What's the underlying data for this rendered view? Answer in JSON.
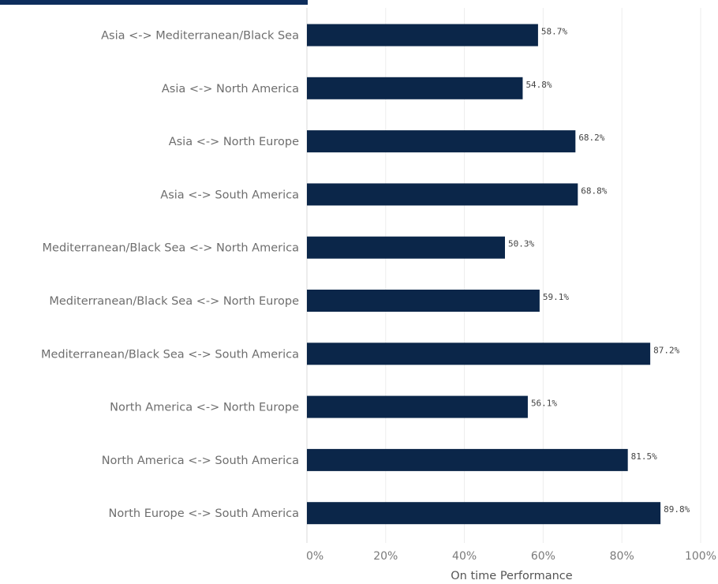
{
  "chart_data": {
    "type": "bar",
    "orientation": "horizontal",
    "categories": [
      "Asia <-> Mediterranean/Black Sea",
      "Asia <-> North America",
      "Asia <-> North Europe",
      "Asia <-> South America",
      "Mediterranean/Black Sea <-> North America",
      "Mediterranean/Black Sea <-> North Europe",
      "Mediterranean/Black Sea <-> South America",
      "North America <-> North Europe",
      "North America <-> South America",
      "North Europe <-> South America"
    ],
    "values": [
      58.7,
      54.8,
      68.2,
      68.8,
      50.3,
      59.1,
      87.2,
      56.1,
      81.5,
      89.8
    ],
    "value_labels": [
      "58.7%",
      "54.8%",
      "68.2%",
      "68.8%",
      "50.3%",
      "59.1%",
      "87.2%",
      "56.1%",
      "81.5%",
      "89.8%"
    ],
    "xlabel": "On time Performance",
    "xticks": [
      0,
      20,
      40,
      60,
      80,
      100
    ],
    "xtick_labels": [
      "0%",
      "20%",
      "40%",
      "60%",
      "80%",
      "100%"
    ],
    "xlim": [
      0,
      100
    ],
    "grid": true,
    "bar_color": "#0b2649"
  }
}
